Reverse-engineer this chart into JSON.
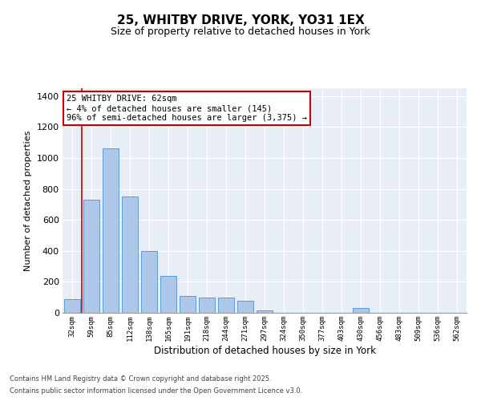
{
  "title_line1": "25, WHITBY DRIVE, YORK, YO31 1EX",
  "title_line2": "Size of property relative to detached houses in York",
  "xlabel": "Distribution of detached houses by size in York",
  "ylabel": "Number of detached properties",
  "categories": [
    "32sqm",
    "59sqm",
    "85sqm",
    "112sqm",
    "138sqm",
    "165sqm",
    "191sqm",
    "218sqm",
    "244sqm",
    "271sqm",
    "297sqm",
    "324sqm",
    "350sqm",
    "377sqm",
    "403sqm",
    "430sqm",
    "456sqm",
    "483sqm",
    "509sqm",
    "536sqm",
    "562sqm"
  ],
  "values": [
    90,
    730,
    1060,
    750,
    400,
    240,
    110,
    100,
    100,
    80,
    15,
    0,
    0,
    0,
    0,
    30,
    0,
    0,
    0,
    0,
    0
  ],
  "bar_color": "#aec6e8",
  "bar_edge_color": "#5b9bd5",
  "red_line_x": 0.5,
  "annotation_text": "25 WHITBY DRIVE: 62sqm\n← 4% of detached houses are smaller (145)\n96% of semi-detached houses are larger (3,375) →",
  "annotation_box_color": "#ffffff",
  "annotation_box_edge_color": "#cc0000",
  "red_line_color": "#cc0000",
  "ylim": [
    0,
    1450
  ],
  "yticks": [
    0,
    200,
    400,
    600,
    800,
    1000,
    1200,
    1400
  ],
  "background_color": "#e8eef5",
  "grid_color": "#ffffff",
  "footer_line1": "Contains HM Land Registry data © Crown copyright and database right 2025.",
  "footer_line2": "Contains public sector information licensed under the Open Government Licence v3.0.",
  "title_fontsize": 11,
  "subtitle_fontsize": 9,
  "bar_width": 0.85
}
